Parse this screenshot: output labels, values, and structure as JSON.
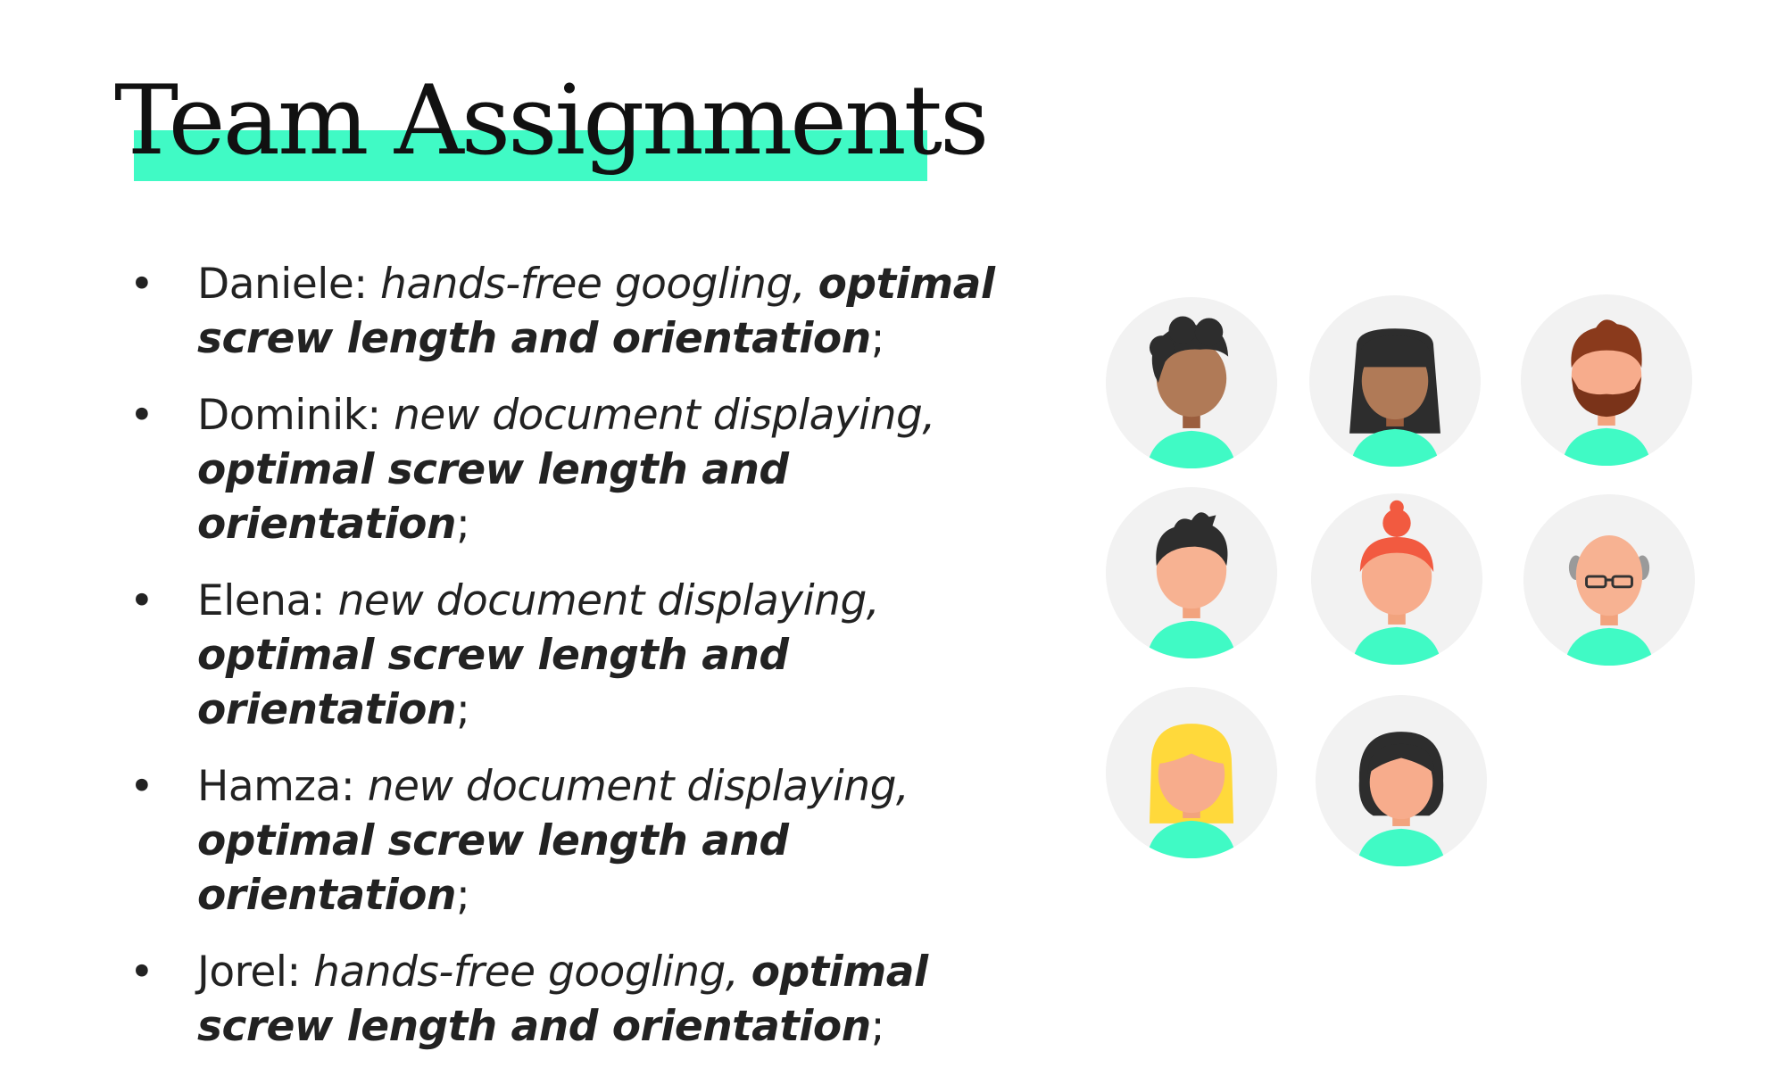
{
  "slide": {
    "title": "Team Assignments",
    "accent_color": "#40fac5",
    "assignments": [
      {
        "name": "Daniele:",
        "task_italic": "hands-free googling,",
        "task_bold": "optimal screw length and orientation",
        "end": ";"
      },
      {
        "name": "Dominik:",
        "task_italic": "new document displaying,",
        "task_bold": "optimal screw length and orientation",
        "end": ";"
      },
      {
        "name": "Elena:",
        "task_italic": "new document displaying,",
        "task_bold": "optimal screw length and orientation",
        "end": ";"
      },
      {
        "name": "Hamza:",
        "task_italic": "new document displaying,",
        "task_bold": "optimal screw length and orientation",
        "end": ";"
      },
      {
        "name": "Jorel:",
        "task_italic": "hands-free googling,",
        "task_bold": "optimal screw length and orientation",
        "end": ";"
      }
    ],
    "avatars": [
      "avatar-curly-hair-man-icon",
      "avatar-bangs-woman-icon",
      "avatar-bearded-man-icon",
      "avatar-spiky-hair-man-icon",
      "avatar-bun-woman-icon",
      "avatar-bald-glasses-man-icon",
      "avatar-blonde-woman-icon",
      "avatar-bob-hair-woman-icon"
    ]
  }
}
